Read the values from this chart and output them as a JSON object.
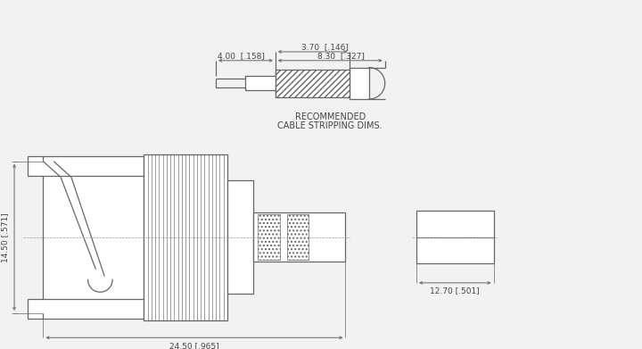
{
  "bg_color": "#f2f2f0",
  "line_color": "#666666",
  "text_color": "#444444",
  "dim_color": "#666666",
  "recommended_text": [
    "RECOMMENDED",
    "CABLE STRIPPING DIMS."
  ],
  "dims_top": {
    "dim1_label": "4.00  [.158]",
    "dim2_label": "3.70  [.146]",
    "dim3_label": "8.30  [.327]"
  },
  "dims_bottom": {
    "dim_width_label": "24.50 [.965]",
    "dim_height_label": "14.50 [.571]",
    "dim_front_label": "12.70 [.501]"
  }
}
